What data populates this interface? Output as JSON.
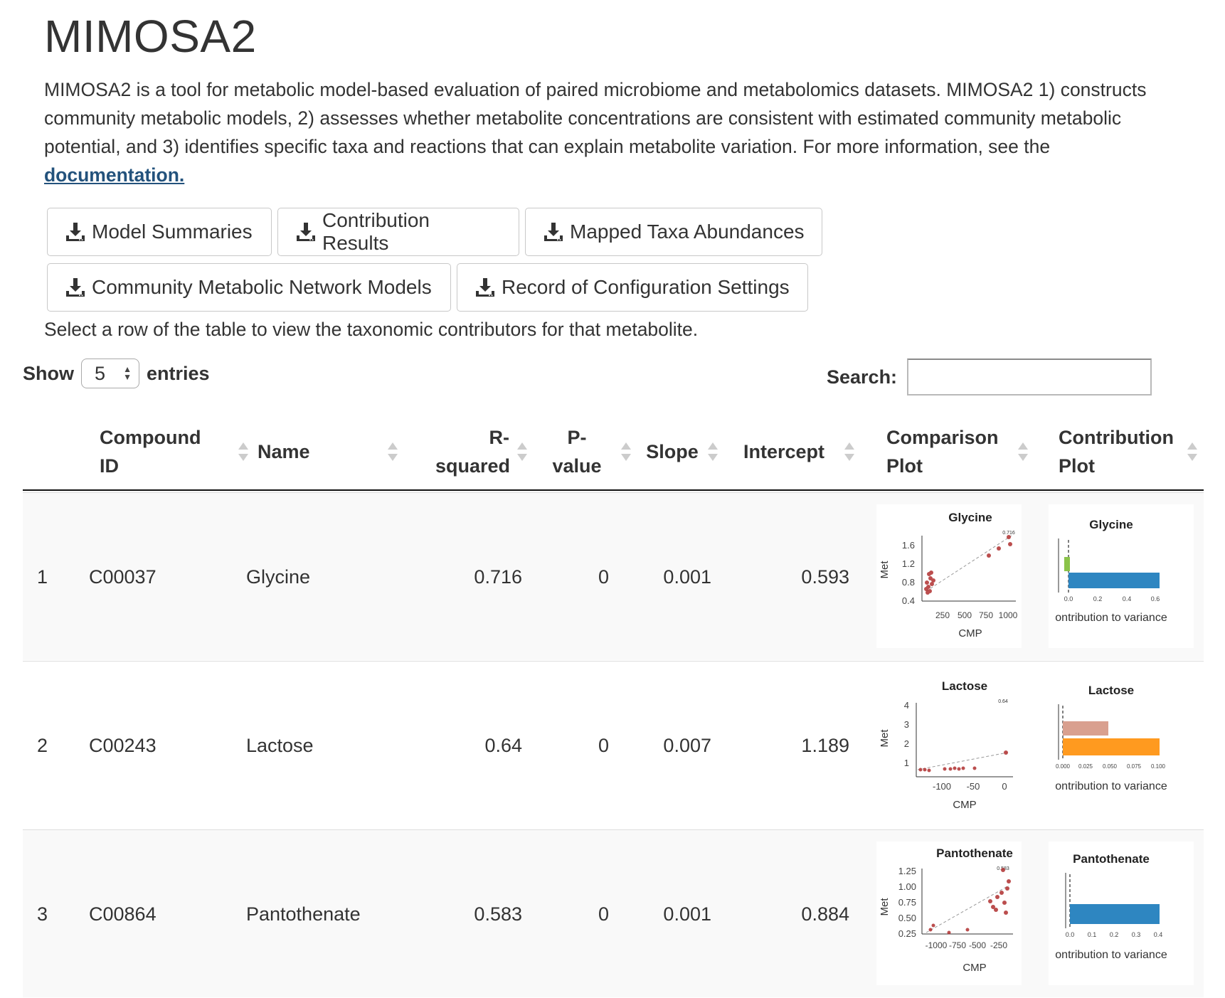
{
  "page": {
    "title": "MIMOSA2",
    "intro_text": "MIMOSA2 is a tool for metabolic model-based evaluation of paired microbiome and metabolomics datasets. MIMOSA2 1) constructs community metabolic models, 2) assesses whether metabolite concentrations are consistent with estimated community metabolic potential, and 3) identifies specific taxa and reactions that can explain metabolite variation. For more information, see the ",
    "doc_link": "documentation."
  },
  "downloads": {
    "model_summaries": "Model Summaries",
    "contribution_results": "Contribution Results",
    "mapped_taxa": "Mapped Taxa Abundances",
    "network_models": "Community Metabolic Network Models",
    "config_record": "Record of Configuration Settings"
  },
  "hint": "Select a row of the table to view the taxonomic contributors for that metabolite.",
  "table_controls": {
    "show_label": "Show",
    "page_length": "5",
    "entries_label": "entries",
    "search_label": "Search:",
    "search_value": ""
  },
  "columns": {
    "compound_id": "Compound ID",
    "name": "Name",
    "r_squared": "R-squared",
    "p_value": "P-value",
    "slope": "Slope",
    "intercept": "Intercept",
    "comparison_plot": "Comparison Plot",
    "contribution_plot": "Contribution Plot"
  },
  "rows": [
    {
      "index": "1",
      "compound_id": "C00037",
      "name": "Glycine",
      "r_squared": "0.716",
      "p_value": "0",
      "slope": "0.001",
      "intercept": "0.593"
    },
    {
      "index": "2",
      "compound_id": "C00243",
      "name": "Lactose",
      "r_squared": "0.64",
      "p_value": "0",
      "slope": "0.007",
      "intercept": "1.189"
    },
    {
      "index": "3",
      "compound_id": "C00864",
      "name": "Pantothenate",
      "r_squared": "0.583",
      "p_value": "0",
      "slope": "0.001",
      "intercept": "0.884"
    }
  ],
  "plots": {
    "met_label": "Met",
    "cmp_label": "CMP",
    "contrib_xlabel": "ontribution to variance",
    "glycine": {
      "comparison_title": "Glycine",
      "comparison_yticks": [
        "1.6",
        "1.2",
        "0.8",
        "0.4"
      ],
      "comparison_xticks": [
        "250",
        "500",
        "750",
        "1000"
      ],
      "comparison_corner": "0.716",
      "contribution_title": "Glycine",
      "contribution_xticks": [
        "0.0",
        "0.2",
        "0.4",
        "0.6"
      ],
      "contribution_bars": [
        {
          "value": 0.02,
          "color": "#8bc34a"
        },
        {
          "value": 0.63,
          "color": "#2e86c1"
        }
      ]
    },
    "lactose": {
      "comparison_title": "Lactose",
      "comparison_yticks": [
        "4",
        "3",
        "2",
        "1"
      ],
      "comparison_xticks": [
        "-100",
        "-50",
        "0"
      ],
      "comparison_corner": "0.64",
      "contribution_title": "Lactose",
      "contribution_xticks": [
        "0.000",
        "0.025",
        "0.050",
        "0.075",
        "0.100"
      ],
      "contribution_bars": [
        {
          "value": 0.05,
          "color": "#d9a08f"
        },
        {
          "value": 0.1,
          "color": "#ff9a1f"
        }
      ]
    },
    "pantothenate": {
      "comparison_title": "Pantothenate",
      "comparison_yticks": [
        "1.25",
        "1.00",
        "0.75",
        "0.50",
        "0.25"
      ],
      "comparison_xticks": [
        "-1000",
        "-750",
        "-500",
        "-250"
      ],
      "comparison_corner": "0.583",
      "contribution_title": "Pantothenate",
      "contribution_xticks": [
        "0.0",
        "0.1",
        "0.2",
        "0.3",
        "0.4"
      ],
      "contribution_bars": [
        {
          "value": 0.4,
          "color": "#2e86c1"
        }
      ]
    }
  }
}
